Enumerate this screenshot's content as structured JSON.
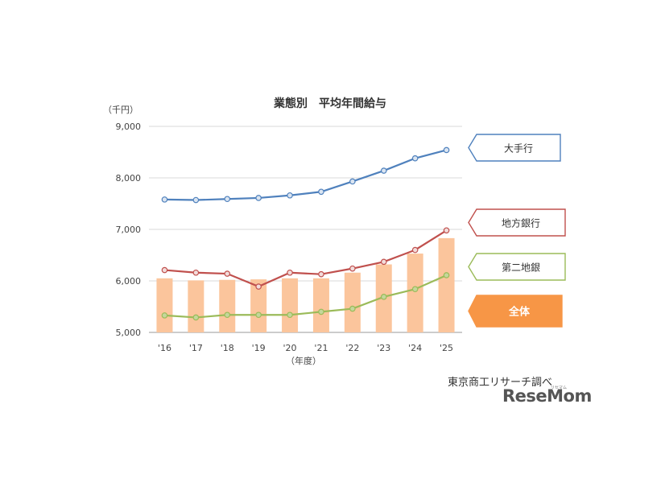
{
  "chart_data": {
    "type": "bar+line",
    "title": "業態別　平均年間給与",
    "y_unit_label": "（千円）",
    "x_unit_label": "（年度）",
    "categories": [
      "'16",
      "'17",
      "'18",
      "'19",
      "'20",
      "'21",
      "'22",
      "'23",
      "'24",
      "'25"
    ],
    "ylim": [
      5000,
      9000
    ],
    "yticks": [
      "5,000",
      "6,000",
      "7,000",
      "8,000",
      "9,000"
    ],
    "ytick_values": [
      5000,
      6000,
      7000,
      8000,
      9000
    ],
    "grid": true,
    "bars": {
      "name": "全体",
      "color": "#fbc59c",
      "values": [
        6050,
        6010,
        6020,
        6030,
        6050,
        6050,
        6160,
        6320,
        6530,
        6830
      ]
    },
    "series": [
      {
        "name": "大手行",
        "color": "#4f81bd",
        "marker_fill": "#dbe5f1",
        "values": [
          7580,
          7570,
          7590,
          7610,
          7660,
          7730,
          7930,
          8140,
          8380,
          8540
        ]
      },
      {
        "name": "地方銀行",
        "color": "#c0504d",
        "marker_fill": "#f2dcdb",
        "values": [
          6210,
          6160,
          6140,
          5890,
          6160,
          6130,
          6240,
          6370,
          6600,
          6980
        ]
      },
      {
        "name": "第二地銀",
        "color": "#9bbb59",
        "marker_fill": "#c4d79b",
        "values": [
          5330,
          5290,
          5340,
          5340,
          5340,
          5400,
          5460,
          5690,
          5840,
          6110
        ]
      }
    ]
  },
  "callouts": [
    {
      "label": "大手行",
      "border": "#4f81bd",
      "fill": "#ffffff"
    },
    {
      "label": "地方銀行",
      "border": "#c0504d",
      "fill": "#ffffff"
    },
    {
      "label": "第二地銀",
      "border": "#9bbb59",
      "fill": "#ffffff"
    },
    {
      "label": "全体",
      "border": "#f79646",
      "fill": "#f79646"
    }
  ],
  "source": "東京商工リサーチ調べ",
  "logo": {
    "text": "ReseMom",
    "ruby": "リセマム"
  }
}
